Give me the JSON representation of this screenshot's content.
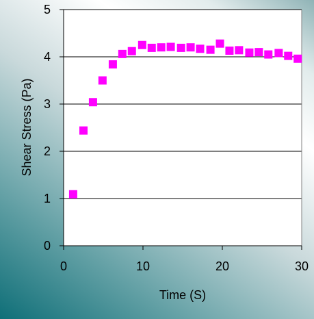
{
  "colors": {
    "marker": "#ff00ff",
    "gridline": "#000000",
    "plot_border": "#808080",
    "plot_fill": "#ffffff"
  },
  "chart_data": {
    "type": "scatter",
    "title": "",
    "xlabel": "Time (S)",
    "ylabel": "Shear Stress (Pa)",
    "xlim": [
      0,
      30
    ],
    "ylim": [
      0,
      5
    ],
    "xticks": [
      "0",
      "10",
      "20",
      "30"
    ],
    "yticks": [
      "0",
      "1",
      "2",
      "3",
      "4",
      "5"
    ],
    "grid": "horizontal",
    "legend": "none",
    "series": [
      {
        "x": [
          1.2,
          2.5,
          3.7,
          4.9,
          6.2,
          7.4,
          8.6,
          9.9,
          11.1,
          12.3,
          13.5,
          14.8,
          16.0,
          17.2,
          18.5,
          19.7,
          20.9,
          22.1,
          23.4,
          24.6,
          25.8,
          27.1,
          28.3,
          29.5
        ],
        "y": [
          1.09,
          2.44,
          3.04,
          3.5,
          3.84,
          4.06,
          4.12,
          4.25,
          4.19,
          4.2,
          4.21,
          4.19,
          4.2,
          4.17,
          4.15,
          4.28,
          4.13,
          4.14,
          4.09,
          4.1,
          4.05,
          4.08,
          4.02,
          3.96
        ]
      }
    ]
  }
}
